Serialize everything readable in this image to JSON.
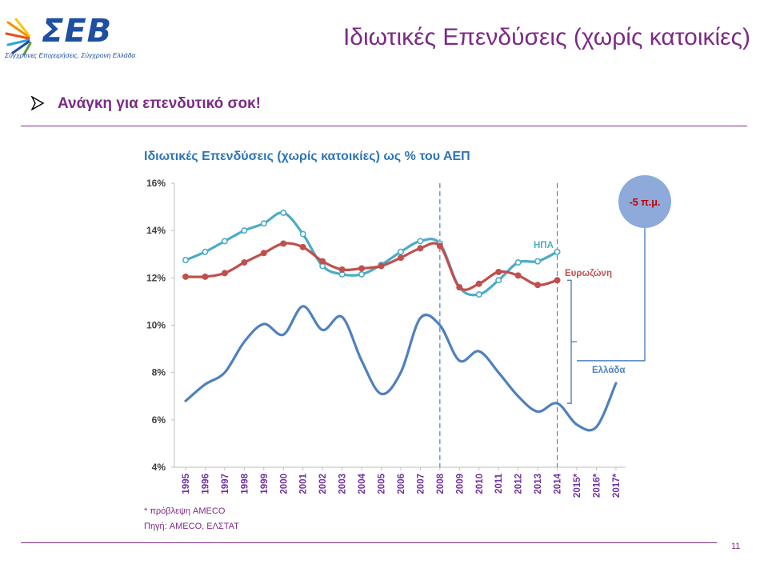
{
  "logo": {
    "name": "ΣΕΒ",
    "tagline": "Σύγχρονες Επιχειρήσεις, Σύγχρονη Ελλάδα"
  },
  "slide_title": "Ιδιωτικές Επενδύσεις (χωρίς κατοικίες)",
  "bullet": "Ανάγκη για επενδυτικό σοκ!",
  "footnote": "* πρόβλεψη AMECO",
  "source": "Πηγή: AMECO, ΕΛΣΤΑΤ",
  "page_number": "11",
  "colors": {
    "accent_purple": "#7b2c84",
    "title_blue": "#2e75b6",
    "usa": "#4bacc6",
    "eurozone": "#c0504d",
    "greece": "#4f81bd",
    "circle": "#8eaadb"
  },
  "chart_data": {
    "type": "line",
    "title": "Ιδιωτικές Επενδύσεις (χωρίς κατοικίες) ως % του ΑΕΠ",
    "x": [
      "1995",
      "1996",
      "1997",
      "1998",
      "1999",
      "2000",
      "2001",
      "2002",
      "2003",
      "2004",
      "2005",
      "2006",
      "2007",
      "2008",
      "2009",
      "2010",
      "2011",
      "2012",
      "2013",
      "2014",
      "2015*",
      "2016*",
      "2017*"
    ],
    "ylim": [
      4,
      16
    ],
    "yticks": [
      "4%",
      "6%",
      "8%",
      "10%",
      "12%",
      "14%",
      "16%"
    ],
    "ytick_values": [
      4,
      6,
      8,
      10,
      12,
      14,
      16
    ],
    "grid": false,
    "markers": true,
    "series": [
      {
        "name": "ΗΠΑ",
        "color": "#4bacc6",
        "values": [
          12.75,
          13.1,
          13.55,
          14.0,
          14.3,
          14.75,
          13.85,
          12.5,
          12.15,
          12.15,
          12.55,
          13.1,
          13.55,
          13.45,
          11.6,
          11.3,
          11.9,
          12.65,
          12.7,
          13.1,
          null,
          null,
          null
        ]
      },
      {
        "name": "Ευρωζώνη",
        "color": "#c0504d",
        "values": [
          12.05,
          12.05,
          12.2,
          12.65,
          13.05,
          13.45,
          13.3,
          12.7,
          12.35,
          12.4,
          12.5,
          12.85,
          13.25,
          13.35,
          11.6,
          11.75,
          12.25,
          12.1,
          11.7,
          11.9,
          null,
          null,
          null
        ]
      },
      {
        "name": "Ελλάδα",
        "color": "#4f81bd",
        "values": [
          6.8,
          7.5,
          8.0,
          9.3,
          10.05,
          9.6,
          10.8,
          9.8,
          10.35,
          8.5,
          7.1,
          8.0,
          10.3,
          10.0,
          8.5,
          8.9,
          8.0,
          7.0,
          6.35,
          6.7,
          5.8,
          5.7,
          7.55
        ]
      }
    ],
    "annotations": {
      "gap_label": "-5 π.μ.",
      "dashed_lines_at": [
        "2008",
        "2014"
      ]
    }
  }
}
